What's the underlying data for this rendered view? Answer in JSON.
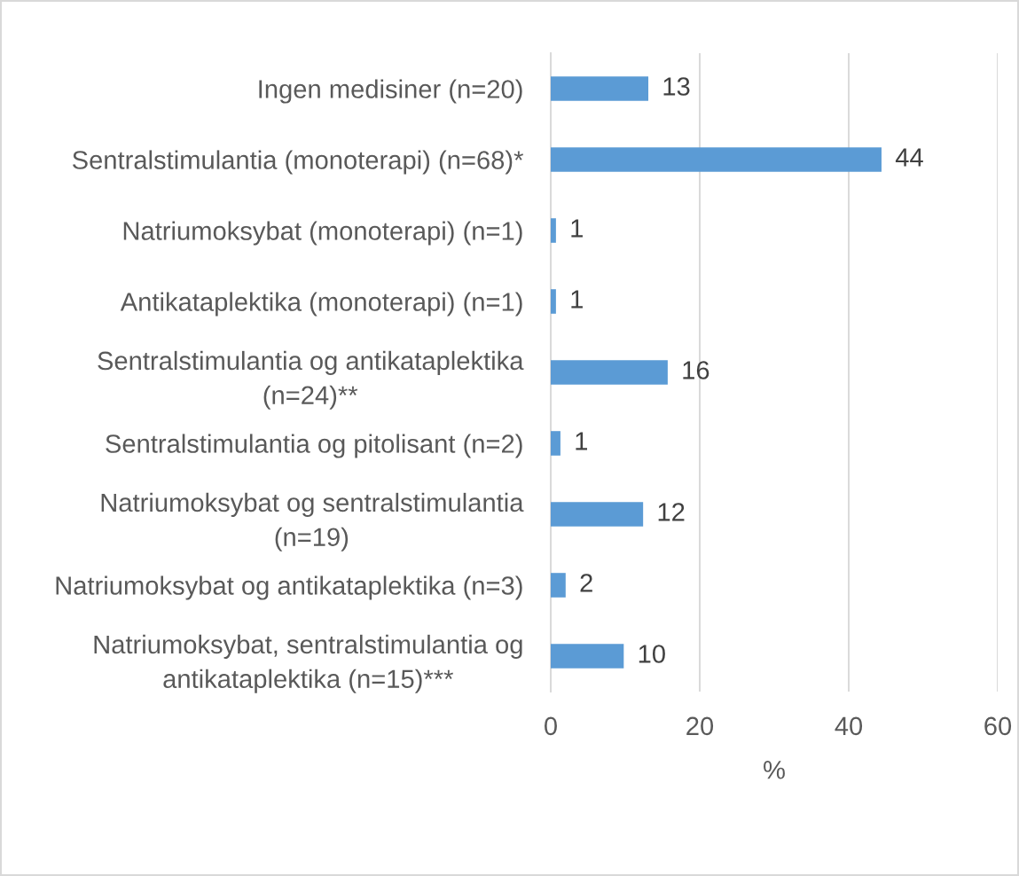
{
  "chart_data": {
    "type": "bar",
    "orientation": "horizontal",
    "categories": [
      "Ingen medisiner (n=20)",
      "Sentralstimulantia (monoterapi) (n=68)*",
      "Natriumoksybat (monoterapi) (n=1)",
      "Antikataplektika (monoterapi) (n=1)",
      "Sentralstimulantia og antikataplektika\n(n=24)**",
      "Sentralstimulantia og pitolisant (n=2)",
      "Natriumoksybat og sentralstimulantia\n(n=19)",
      "Natriumoksybat og antikataplektika (n=3)",
      "Natriumoksybat, sentralstimulantia og\nantikataplektika (n=15)***"
    ],
    "values": [
      13.1,
      44.4,
      0.7,
      0.7,
      15.7,
      1.3,
      12.4,
      2.0,
      9.8
    ],
    "value_labels": [
      "13",
      "44",
      "1",
      "1",
      "16",
      "1",
      "12",
      "2",
      "10"
    ],
    "color": "#5b9bd5",
    "xlabel": "%",
    "xlim": [
      0,
      60
    ],
    "xticks": [
      0,
      20,
      40,
      60
    ],
    "grid": "x"
  }
}
